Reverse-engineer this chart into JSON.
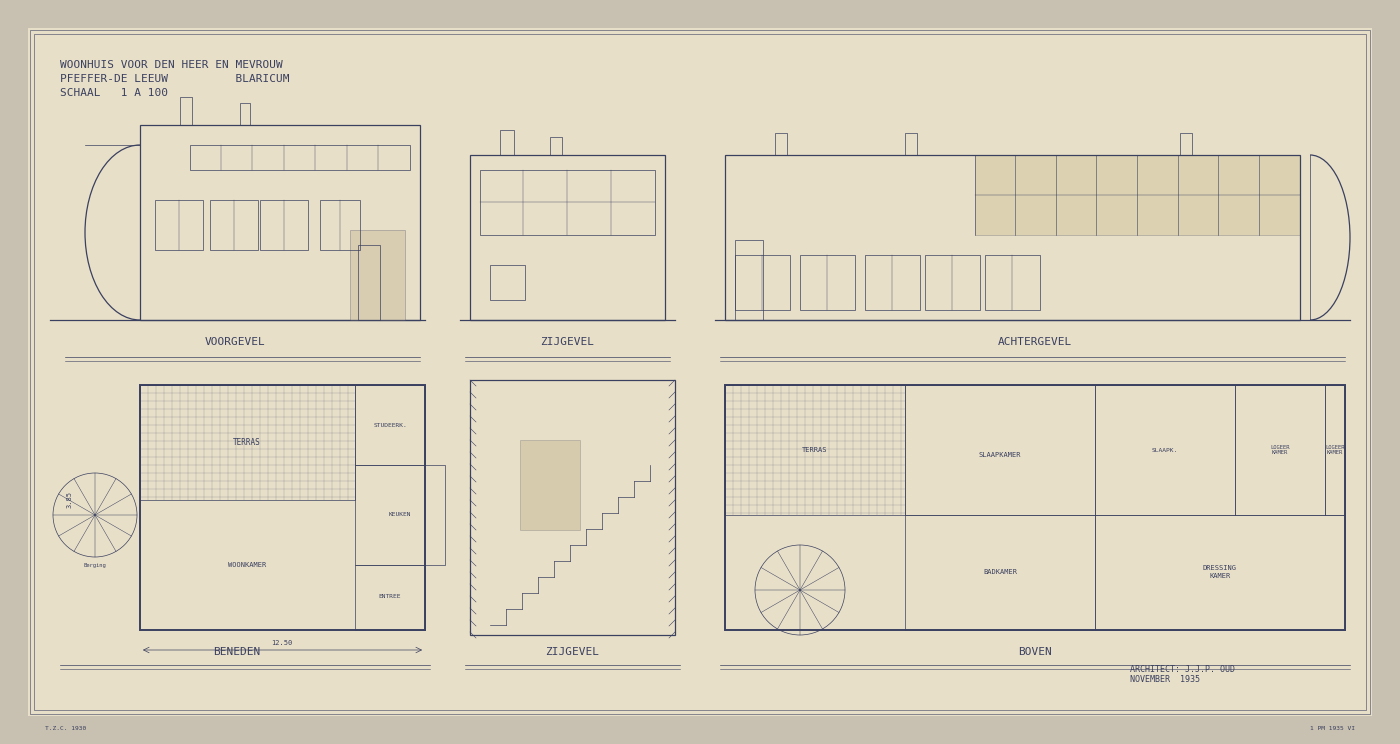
{
  "outer_bg": "#c8c0b0",
  "paper_color": "#e8dfc8",
  "paper_inner": "#e0d4b8",
  "line_color": "#3a4060",
  "line_color_light": "#5a6080",
  "title_lines": [
    "WOONHUIS VOOR DEN HEER EN MEVROUW",
    "PFEFFER-DE LEEUW          BLARICUM",
    "SCHAAL   1 A 100"
  ],
  "label_voorgevel": "VOORGEVEL",
  "label_zijgevel1": "ZIJGEVEL",
  "label_achtergevel": "ACHTERGEVEL",
  "label_beneden": "BENEDEN",
  "label_zijgevel2": "ZIJGEVEL",
  "label_boven": "BOVEN",
  "credit_line1": "ARCHITECT: J.J.P. OUD",
  "credit_line2": "NOVEMBER  1935",
  "figsize": [
    14.0,
    7.44
  ],
  "dpi": 100
}
